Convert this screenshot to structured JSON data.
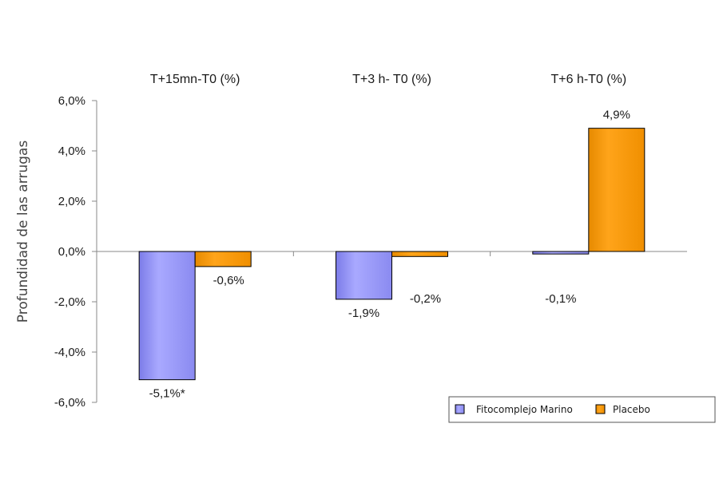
{
  "chart_data": {
    "type": "bar",
    "categories": [
      "T+15mn-T0 (%)",
      "T+3 h- T0 (%)",
      "T+6 h-T0 (%)"
    ],
    "series": [
      {
        "name": "Fitocomplejo Marino",
        "values": [
          -5.1,
          -1.9,
          -0.1
        ],
        "color": "#9999ff"
      },
      {
        "name": "Placebo",
        "values": [
          -0.6,
          -0.2,
          4.9
        ],
        "color": "#ff9900"
      }
    ],
    "data_labels": [
      [
        "-5,1%*",
        "-1,9%",
        "-0,1%"
      ],
      [
        "-0,6%",
        "-0,2%",
        "4,9%"
      ]
    ],
    "ylabel": "Profundidad de las arrugas",
    "ylim": [
      -6.0,
      6.0
    ],
    "yticks": [
      6.0,
      4.0,
      2.0,
      0.0,
      -2.0,
      -4.0,
      -6.0
    ],
    "ytick_labels": [
      "6,0%",
      "4,0%",
      "2,0%",
      "0,0%",
      "-2,0%",
      "-4,0%",
      "-6,0%"
    ],
    "grid": false,
    "category_labels_position": "top",
    "legend_position": "bottom-right"
  }
}
